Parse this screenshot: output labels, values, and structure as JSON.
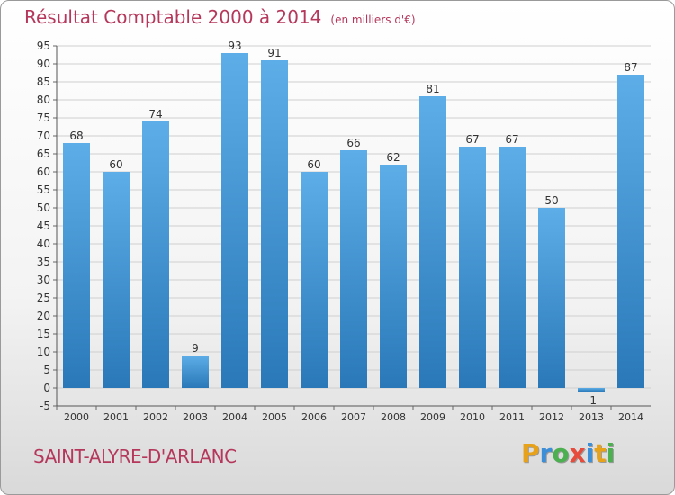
{
  "title": "Résultat Comptable 2000 à 2014",
  "subtitle": "(en milliers d'€)",
  "location": "SAINT-ALYRE-D'ARLANC",
  "brand": {
    "letters": [
      "P",
      "r",
      "o",
      "x",
      "i",
      "t",
      "i"
    ],
    "colors": [
      "#e8a21a",
      "#3b8ed8",
      "#4caf50",
      "#e64b3c",
      "#3b8ed8",
      "#e8a21a",
      "#4caf50"
    ]
  },
  "colors": {
    "title": "#b5385c",
    "bar_top": "#5daee8",
    "bar_bottom": "#2a78b8",
    "grid": "#cfcfcf",
    "axis_text": "#333333"
  },
  "chart_data": {
    "type": "bar",
    "categories": [
      "2000",
      "2001",
      "2002",
      "2003",
      "2004",
      "2005",
      "2006",
      "2007",
      "2008",
      "2009",
      "2010",
      "2011",
      "2012",
      "2013",
      "2014"
    ],
    "values": [
      68,
      60,
      74,
      9,
      93,
      91,
      60,
      66,
      62,
      81,
      67,
      67,
      50,
      -1,
      87
    ],
    "ylim": [
      -5,
      95
    ],
    "yticks": [
      -5,
      0,
      5,
      10,
      15,
      20,
      25,
      30,
      35,
      40,
      45,
      50,
      55,
      60,
      65,
      70,
      75,
      80,
      85,
      90,
      95
    ],
    "grid": true,
    "legend": "none"
  }
}
